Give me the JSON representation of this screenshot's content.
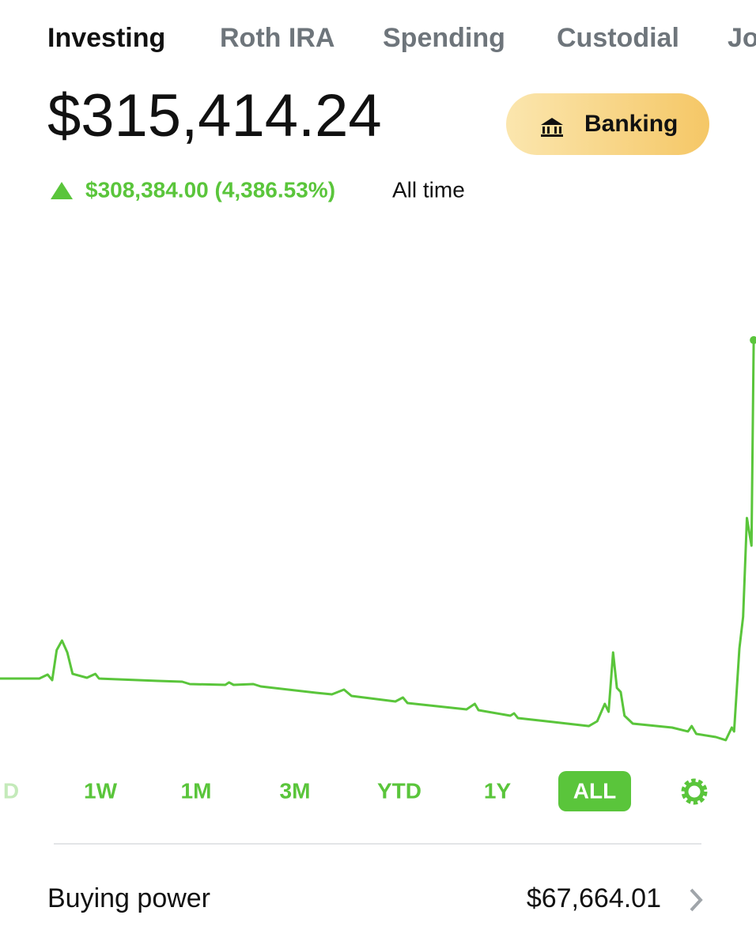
{
  "tabs": [
    "Investing",
    "Roth IRA",
    "Spending",
    "Custodial",
    "Jo"
  ],
  "active_tab": 0,
  "balance": "$315,414.24",
  "banking_button": "Banking",
  "change": {
    "amount": "$308,384.00 (4,386.53%)",
    "period": "All time"
  },
  "chart_data": {
    "type": "line",
    "color": "#5ac53b",
    "x": [
      0,
      5.2,
      6.3,
      6.9,
      7.5,
      8.2,
      8.9,
      9.6,
      11.5,
      12.6,
      13.1,
      20.9,
      24.1,
      25.1,
      29.8,
      30.3,
      30.9,
      33.5,
      34.5,
      41.8,
      43.9,
      45.5,
      46.5,
      52.3,
      53.3,
      53.9,
      61.7,
      62.8,
      63.3,
      67.5,
      68,
      68.5,
      73.2,
      77.9,
      79,
      80,
      80.5,
      81.1,
      81.6,
      82.1,
      82.6,
      83.7,
      88.9,
      91,
      91.5,
      92.1,
      94.7,
      96,
      96.8,
      97.1,
      97.8,
      98.3,
      98.8,
      99.4,
      99.7
    ],
    "values": [
      4200,
      4200,
      7800,
      2700,
      30400,
      39100,
      28200,
      8500,
      4900,
      8500,
      4200,
      2000,
      1300,
      -900,
      -1600,
      600,
      -1600,
      -900,
      -3100,
      -8900,
      -10400,
      -6000,
      -11800,
      -16900,
      -13300,
      -18400,
      -24200,
      -19100,
      -24900,
      -30000,
      -27800,
      -32200,
      -35800,
      -39500,
      -35100,
      -19100,
      -26400,
      28200,
      -4500,
      -8200,
      -30000,
      -37300,
      -40900,
      -44500,
      -39500,
      -46700,
      -49600,
      -52500,
      -40900,
      -44500,
      31800,
      60900,
      151800,
      126400,
      315414
    ],
    "xlim": [
      0,
      100
    ],
    "ylim": [
      -70000,
      410000
    ]
  },
  "ranges": [
    "D",
    "1W",
    "1M",
    "3M",
    "YTD",
    "1Y",
    "ALL"
  ],
  "active_range": 6,
  "buying_power": {
    "label": "Buying power",
    "value": "$67,664.01"
  }
}
